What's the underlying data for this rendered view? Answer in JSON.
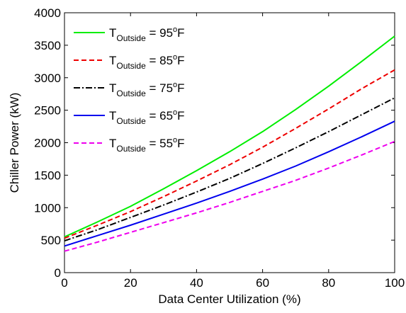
{
  "chart_data": {
    "type": "line",
    "title": "",
    "xlabel": "Data Center Utilization (%)",
    "ylabel": "Chiller Power (kW)",
    "xlim": [
      0,
      100
    ],
    "ylim": [
      0,
      4000
    ],
    "xticks": [
      0,
      20,
      40,
      60,
      80,
      100
    ],
    "yticks": [
      0,
      500,
      1000,
      1500,
      2000,
      2500,
      3000,
      3500,
      4000
    ],
    "x": [
      0,
      10,
      20,
      30,
      40,
      50,
      60,
      70,
      80,
      90,
      100
    ],
    "grid": false,
    "legend_position": "top-left",
    "series": [
      {
        "label": {
          "main": "T",
          "sub": "Outside",
          "value": " = 95",
          "sup": "o",
          "unit": "F"
        },
        "color": "#00ee00",
        "dash": "solid",
        "values": [
          550,
          780,
          1020,
          1290,
          1570,
          1860,
          2170,
          2510,
          2870,
          3250,
          3640
        ]
      },
      {
        "label": {
          "main": "T",
          "sub": "Outside",
          "value": " = 85",
          "sup": "o",
          "unit": "F"
        },
        "color": "#ee0000",
        "dash": "dashed",
        "values": [
          530,
          730,
          940,
          1170,
          1410,
          1660,
          1930,
          2220,
          2520,
          2830,
          3120
        ]
      },
      {
        "label": {
          "main": "T",
          "sub": "Outside",
          "value": " = 75",
          "sup": "o",
          "unit": "F"
        },
        "color": "#000000",
        "dash": "dashdot",
        "values": [
          490,
          660,
          850,
          1040,
          1240,
          1450,
          1680,
          1920,
          2170,
          2430,
          2690
        ]
      },
      {
        "label": {
          "main": "T",
          "sub": "Outside",
          "value": " = 65",
          "sup": "o",
          "unit": "F"
        },
        "color": "#0000ee",
        "dash": "solid",
        "values": [
          410,
          570,
          730,
          900,
          1070,
          1250,
          1440,
          1640,
          1860,
          2090,
          2330
        ]
      },
      {
        "label": {
          "main": "T",
          "sub": "Outside",
          "value": " = 55",
          "sup": "o",
          "unit": "F"
        },
        "color": "#ee00ee",
        "dash": "dashed",
        "values": [
          330,
          470,
          620,
          770,
          920,
          1080,
          1250,
          1420,
          1610,
          1810,
          2020
        ]
      }
    ]
  }
}
